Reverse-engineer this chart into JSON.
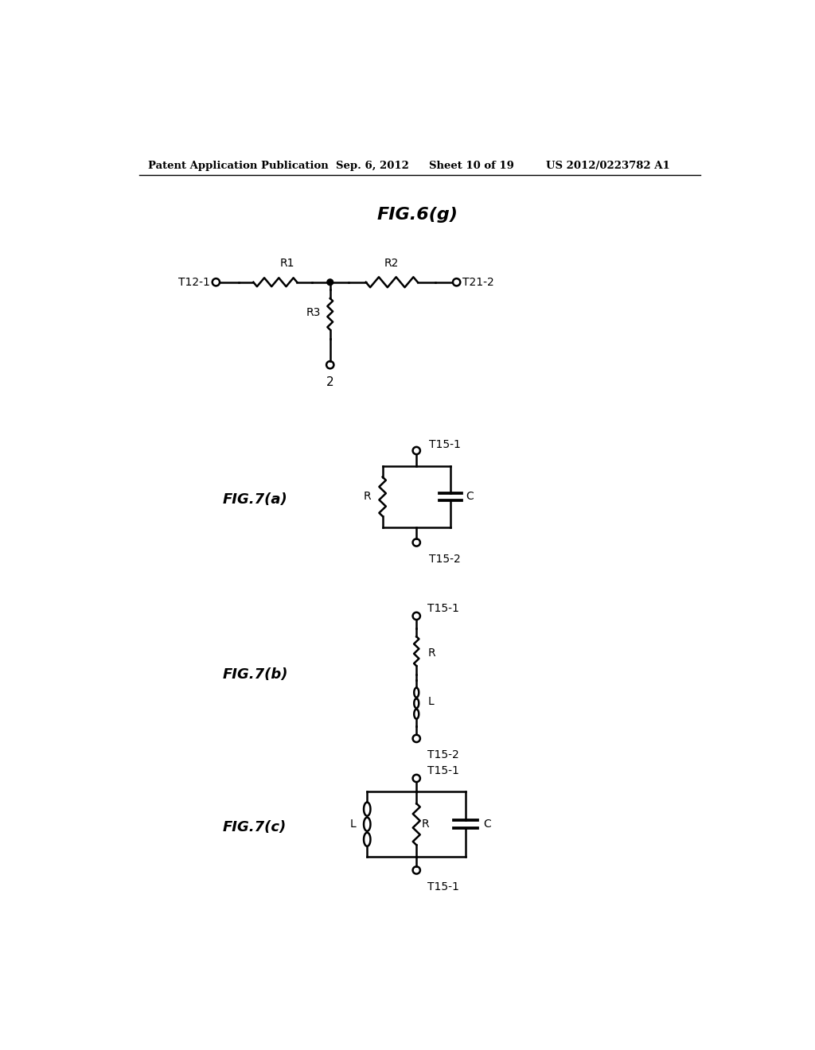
{
  "background_color": "#ffffff",
  "fig6g_title": "FIG.6(g)",
  "fig7a_label": "FIG.7(a)",
  "fig7b_label": "FIG.7(b)",
  "fig7c_label": "FIG.7(c)",
  "header_left": "Patent Application Publication",
  "header_date": "Sep. 6, 2012",
  "header_sheet": "Sheet 10 of 19",
  "header_patent": "US 2012/0223782 A1"
}
